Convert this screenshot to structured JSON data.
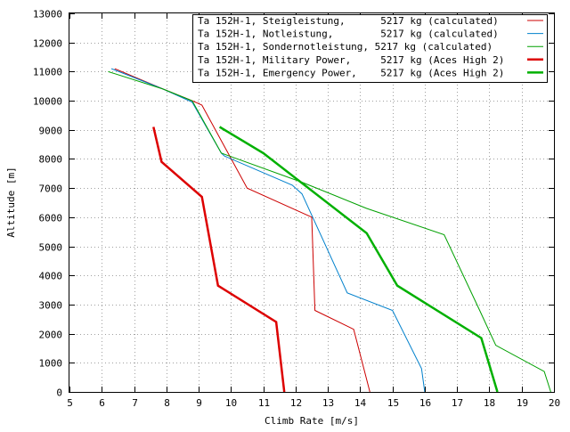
{
  "chart_data": {
    "type": "line",
    "title": "",
    "xlabel": "Climb Rate [m/s]",
    "ylabel": "Altitude [m]",
    "xlim": [
      5,
      20
    ],
    "ylim": [
      0,
      13000
    ],
    "xticks": [
      5,
      6,
      7,
      8,
      9,
      10,
      11,
      12,
      13,
      14,
      15,
      16,
      17,
      18,
      19,
      20
    ],
    "yticks": [
      0,
      1000,
      2000,
      3000,
      4000,
      5000,
      6000,
      7000,
      8000,
      9000,
      10000,
      11000,
      12000,
      13000
    ],
    "grid": true,
    "legend_position": "top-right",
    "series": [
      {
        "name": "Ta 152H-1, Steigleistung,      5217 kg (calculated)",
        "color": "#cc0000",
        "width": 1,
        "points": [
          [
            14.3,
            0
          ],
          [
            13.8,
            2150
          ],
          [
            12.6,
            2800
          ],
          [
            12.5,
            6000
          ],
          [
            10.5,
            7000
          ],
          [
            9.1,
            9850
          ],
          [
            8.8,
            10000
          ],
          [
            7.9,
            10400
          ],
          [
            6.4,
            11100
          ]
        ]
      },
      {
        "name": "Ta 152H-1, Notleistung,        5217 kg (calculated)",
        "color": "#0080cc",
        "width": 1,
        "points": [
          [
            16.0,
            0
          ],
          [
            15.9,
            800
          ],
          [
            15.0,
            2800
          ],
          [
            13.6,
            3400
          ],
          [
            12.2,
            6800
          ],
          [
            11.9,
            7100
          ],
          [
            9.8,
            8100
          ],
          [
            9.7,
            8200
          ],
          [
            8.8,
            9950
          ],
          [
            7.9,
            10400
          ],
          [
            6.3,
            11100
          ]
        ]
      },
      {
        "name": "Ta 152H-1, Sondernotleistung, 5217 kg (calculated)",
        "color": "#00a000",
        "width": 1,
        "points": [
          [
            19.9,
            0
          ],
          [
            19.7,
            700
          ],
          [
            18.2,
            1600
          ],
          [
            17.7,
            2800
          ],
          [
            16.6,
            5400
          ],
          [
            14.2,
            6300
          ],
          [
            12.2,
            7200
          ],
          [
            9.7,
            8200
          ],
          [
            8.8,
            10000
          ],
          [
            7.9,
            10400
          ],
          [
            6.2,
            11000
          ]
        ]
      },
      {
        "name": "Ta 152H-1, Military Power,     5217 kg (Aces High 2)",
        "color": "#dd0000",
        "width": 2.5,
        "points": [
          [
            11.65,
            0
          ],
          [
            11.4,
            2400
          ],
          [
            9.6,
            3650
          ],
          [
            9.1,
            6700
          ],
          [
            7.85,
            7900
          ],
          [
            7.6,
            9100
          ]
        ]
      },
      {
        "name": "Ta 152H-1, Emergency Power,    5217 kg (Aces High 2)",
        "color": "#00b000",
        "width": 2.5,
        "points": [
          [
            18.25,
            0
          ],
          [
            17.75,
            1850
          ],
          [
            15.15,
            3650
          ],
          [
            14.2,
            5450
          ],
          [
            11.0,
            8200
          ],
          [
            9.65,
            9100
          ]
        ]
      }
    ]
  }
}
